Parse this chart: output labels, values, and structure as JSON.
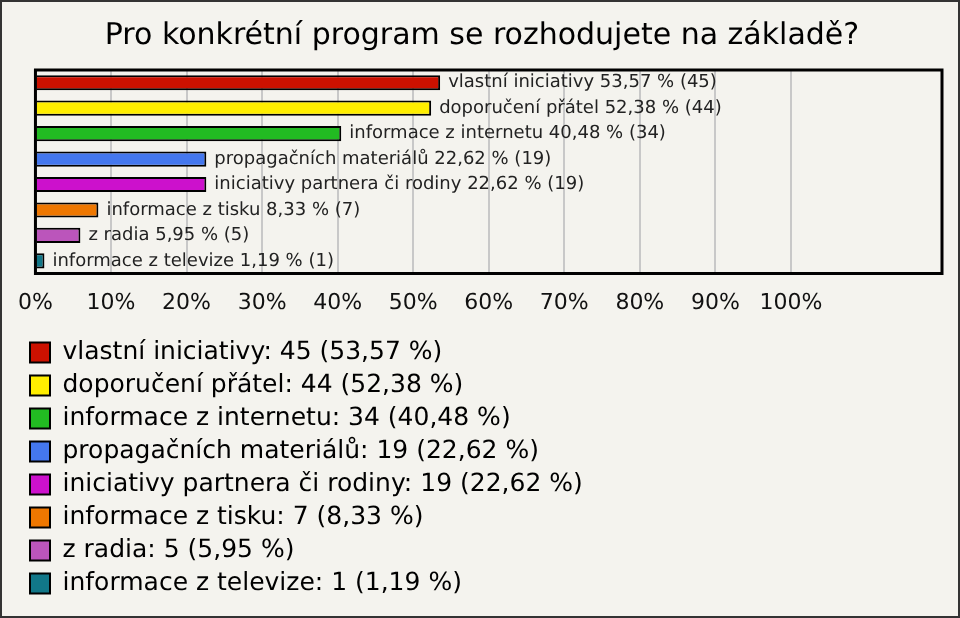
{
  "chart_data": {
    "type": "bar",
    "orientation": "horizontal",
    "title": "Pro konkrétní program se rozhodujete na základě?",
    "categories": [
      null,
      null,
      null,
      null,
      null,
      null,
      null,
      null
    ],
    "series": [
      {
        "name": "vlastní iniciativy: 45 (53,57 %)",
        "color": "#cc1100",
        "values": [
          53.57,
          null,
          null,
          null,
          null,
          null,
          null,
          null
        ],
        "value_labels": [
          "vlastní iniciativy 53,57 % (45)",
          null,
          null,
          null,
          null,
          null,
          null,
          null
        ]
      },
      {
        "name": "doporučení přátel: 44 (52,38 %)",
        "color": "#ffee00",
        "values": [
          null,
          52.38,
          null,
          null,
          null,
          null,
          null,
          null
        ],
        "value_labels": [
          null,
          "doporučení přátel 52,38 % (44)",
          null,
          null,
          null,
          null,
          null,
          null
        ]
      },
      {
        "name": "informace z internetu: 34 (40,48 %)",
        "color": "#22bb22",
        "values": [
          null,
          null,
          40.48,
          null,
          null,
          null,
          null,
          null
        ],
        "value_labels": [
          null,
          null,
          "informace z internetu 40,48 % (34)",
          null,
          null,
          null,
          null,
          null
        ]
      },
      {
        "name": "propagačních materiálů: 19 (22,62 %)",
        "color": "#4477ee",
        "values": [
          null,
          null,
          null,
          22.62,
          null,
          null,
          null,
          null
        ],
        "value_labels": [
          null,
          null,
          null,
          "propagačních materiálů 22,62 % (19)",
          null,
          null,
          null,
          null
        ]
      },
      {
        "name": "iniciativy partnera či rodiny: 19 (22,62 %)",
        "color": "#cc11cc",
        "values": [
          null,
          null,
          null,
          null,
          22.62,
          null,
          null,
          null
        ],
        "value_labels": [
          null,
          null,
          null,
          null,
          "iniciativy partnera či rodiny 22,62 % (19)",
          null,
          null,
          null
        ]
      },
      {
        "name": "informace z tisku: 7 (8,33 %)",
        "color": "#ee7700",
        "values": [
          null,
          null,
          null,
          null,
          null,
          8.33,
          null,
          null
        ],
        "value_labels": [
          null,
          null,
          null,
          null,
          null,
          "informace z tisku 8,33 % (7)",
          null,
          null
        ]
      },
      {
        "name": "z radia: 5 (5,95 %)",
        "color": "#bb55bb",
        "values": [
          null,
          null,
          null,
          null,
          null,
          null,
          5.95,
          null
        ],
        "value_labels": [
          null,
          null,
          null,
          null,
          null,
          null,
          "z radia 5,95 % (5)",
          null
        ]
      },
      {
        "name": "informace z televize: 1 (1,19 %)",
        "color": "#117788",
        "values": [
          null,
          null,
          null,
          null,
          null,
          null,
          null,
          1.19
        ],
        "value_labels": [
          null,
          null,
          null,
          null,
          null,
          null,
          null,
          "informace z televize 1,19 % (1)"
        ]
      }
    ],
    "xlim": [
      0,
      120
    ],
    "xticks": [
      {
        "value": 0,
        "label": "0%"
      },
      {
        "value": 10,
        "label": "10%"
      },
      {
        "value": 20,
        "label": "20%"
      },
      {
        "value": 30,
        "label": "30%"
      },
      {
        "value": 40,
        "label": "40%"
      },
      {
        "value": 50,
        "label": "50%"
      },
      {
        "value": 60,
        "label": "60%"
      },
      {
        "value": 70,
        "label": "70%"
      },
      {
        "value": 80,
        "label": "80%"
      },
      {
        "value": 90,
        "label": "90%"
      },
      {
        "value": 100,
        "label": "100%"
      }
    ],
    "grid": "x",
    "legend": "bottom",
    "tick_labels": "x"
  }
}
